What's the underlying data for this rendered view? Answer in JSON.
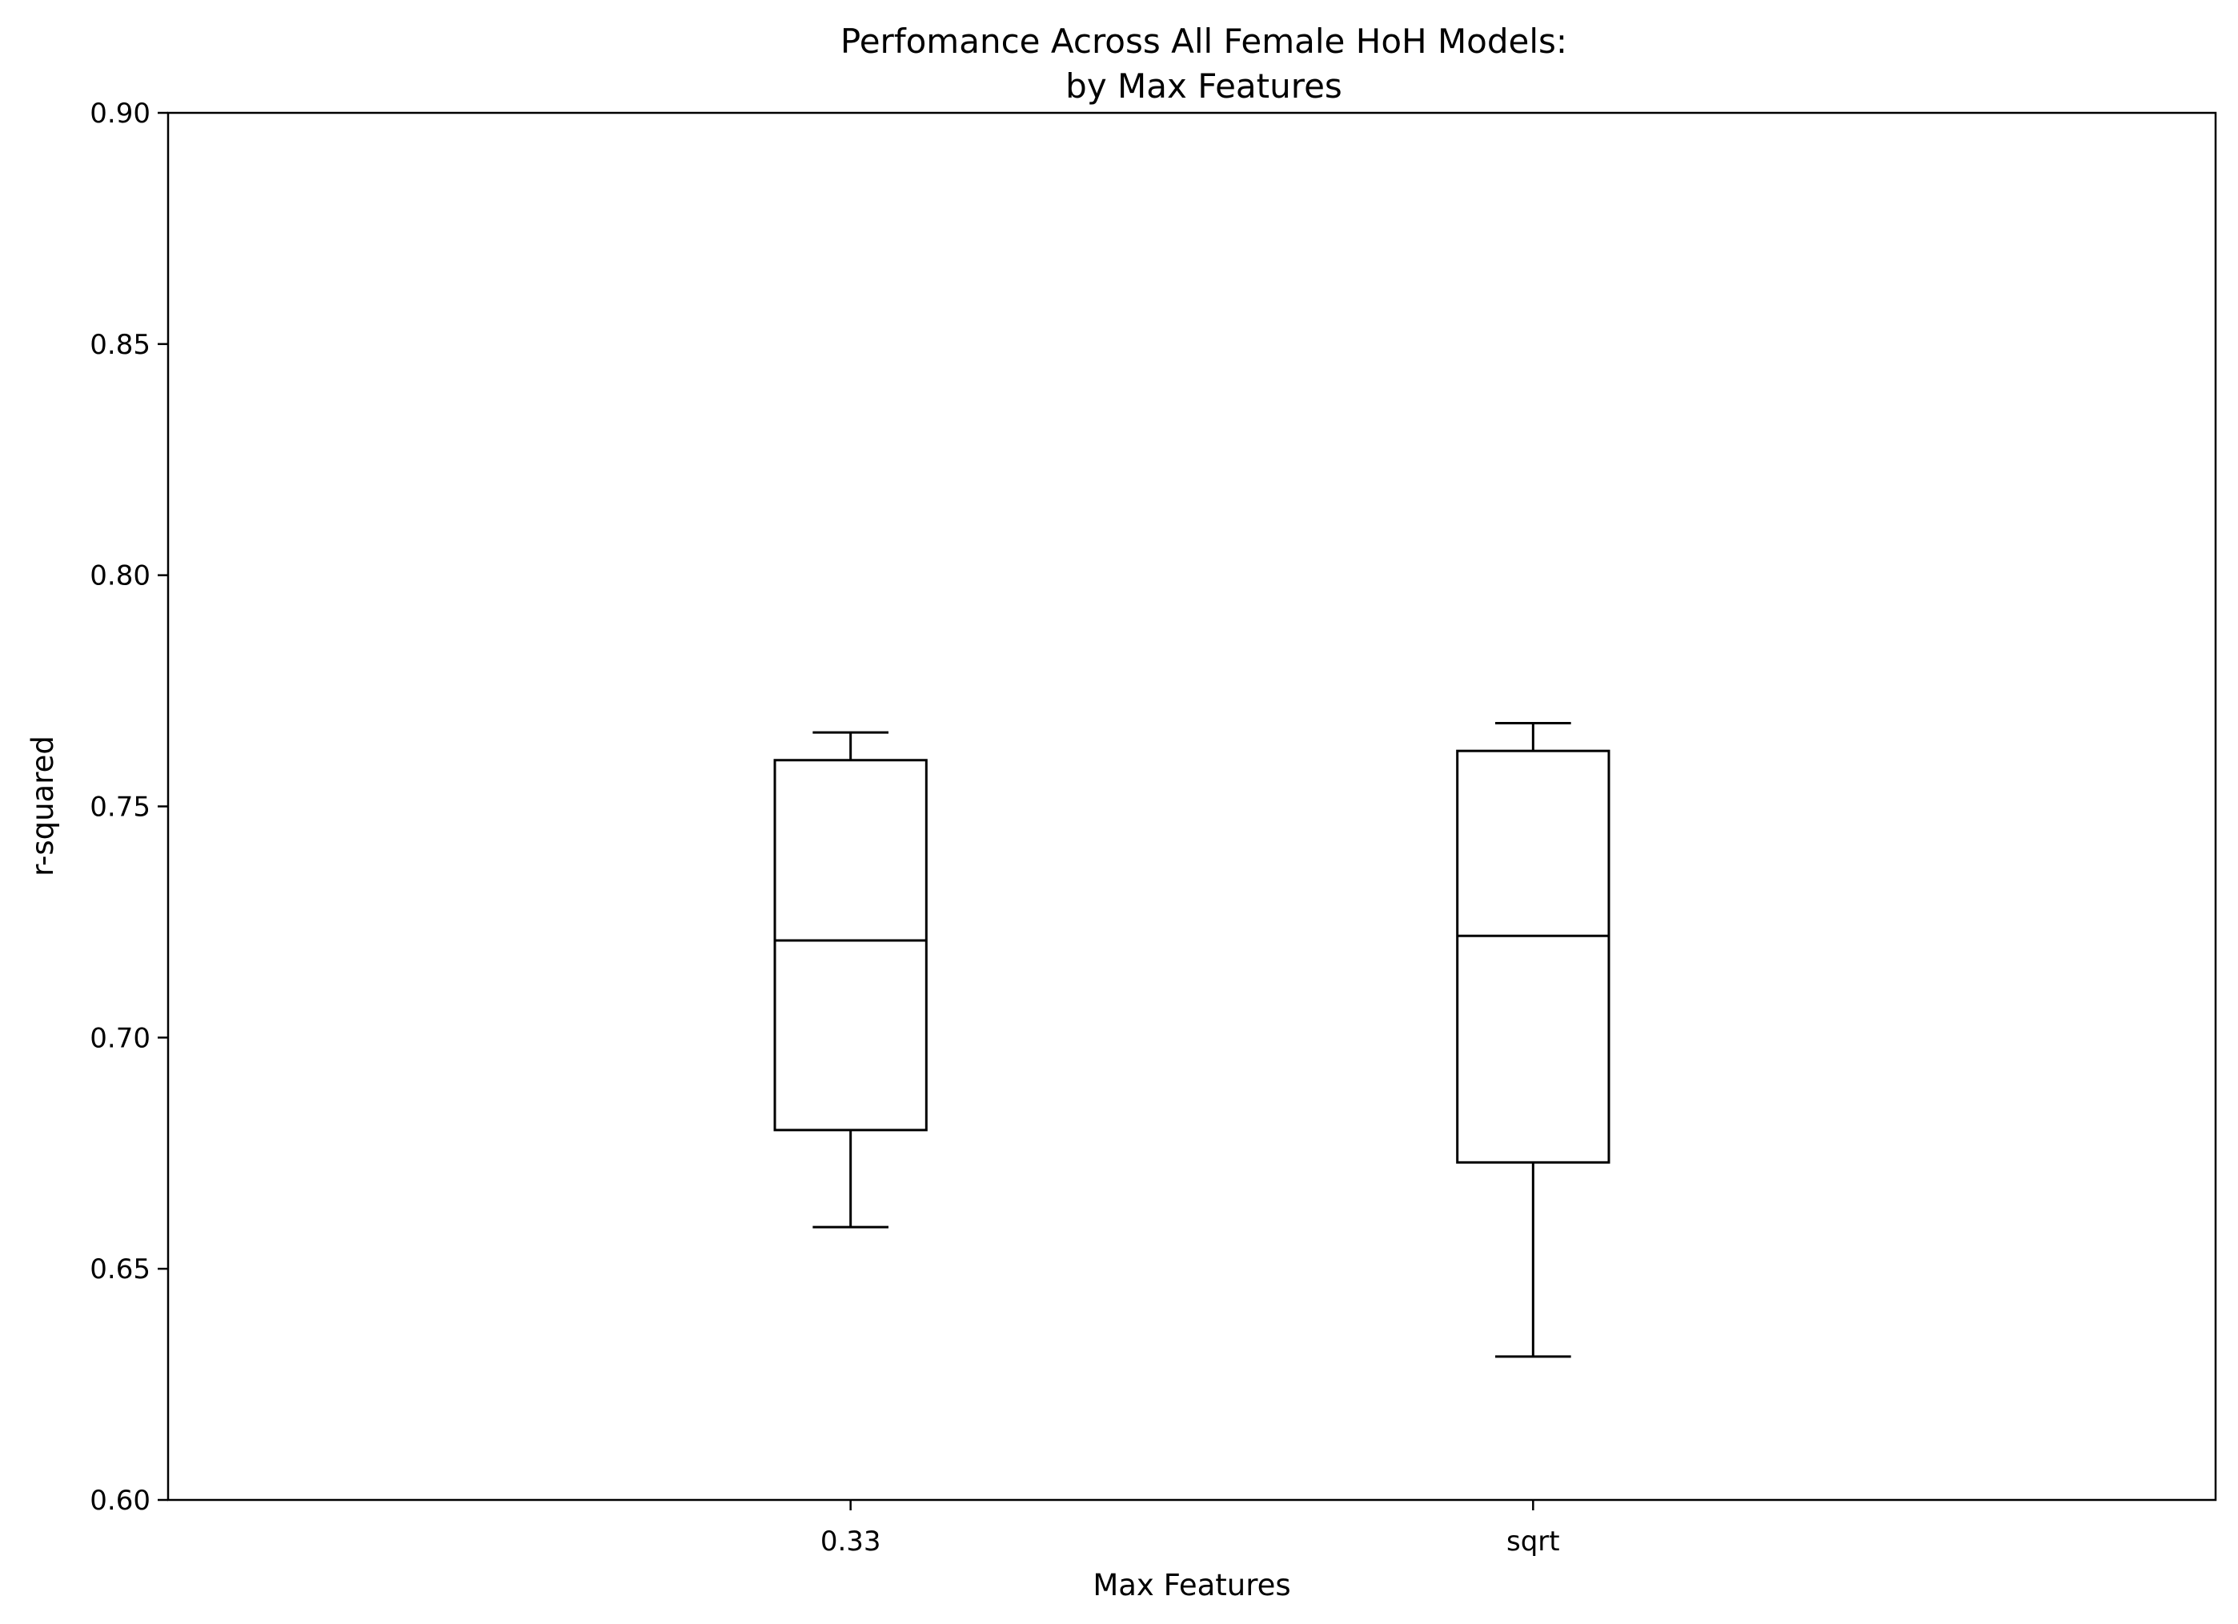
{
  "chart_data": {
    "type": "box",
    "title_line1": "Perfomance Across All Female HoH Models:",
    "title_line2": "by Max Features",
    "xlabel": "Max Features",
    "ylabel": "r-squared",
    "ylim": [
      0.6,
      0.9
    ],
    "yticks": [
      "0.60",
      "0.65",
      "0.70",
      "0.75",
      "0.80",
      "0.85",
      "0.90"
    ],
    "grid": false,
    "color": "#000000",
    "boxes": [
      {
        "label": "0.33",
        "whisker_low": 0.659,
        "q1": 0.68,
        "median": 0.721,
        "q3": 0.76,
        "whisker_high": 0.766
      },
      {
        "label": "sqrt",
        "whisker_low": 0.631,
        "q1": 0.673,
        "median": 0.722,
        "q3": 0.762,
        "whisker_high": 0.768
      }
    ]
  }
}
